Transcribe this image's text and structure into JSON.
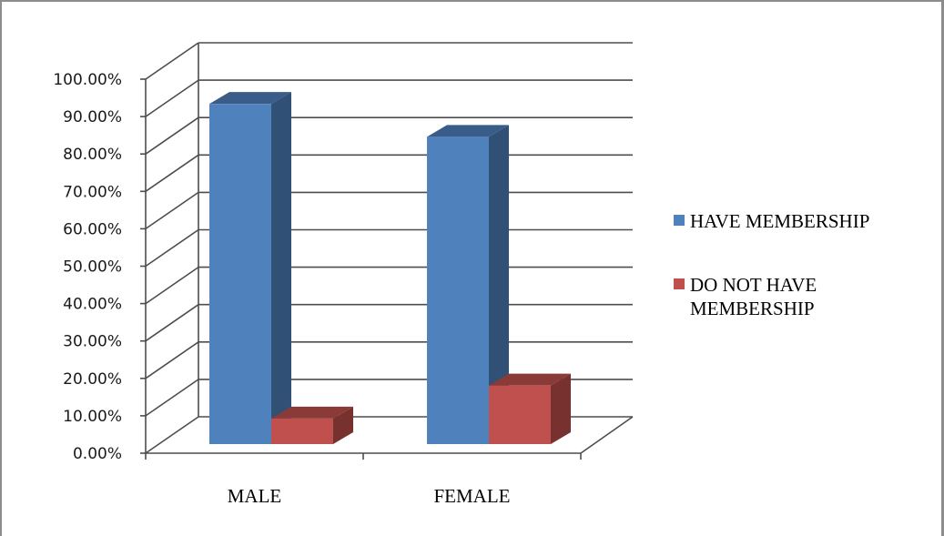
{
  "chart_data": {
    "type": "bar",
    "style": "3d-clustered-column",
    "categories": [
      "MALE",
      "FEMALE"
    ],
    "series": [
      {
        "name": "HAVE MEMBERSHIP",
        "color": "#4f81bd",
        "values": [
          93.0,
          84.0
        ]
      },
      {
        "name": "DO NOT HAVE MEMBERSHIP",
        "color": "#c0504d",
        "values": [
          7.0,
          16.0
        ]
      }
    ],
    "y_ticks": [
      "0.00%",
      "10.00%",
      "20.00%",
      "30.00%",
      "40.00%",
      "50.00%",
      "60.00%",
      "70.00%",
      "80.00%",
      "90.00%",
      "100.00%"
    ],
    "ylim": [
      0,
      100
    ],
    "grid": true,
    "legend": "right"
  }
}
